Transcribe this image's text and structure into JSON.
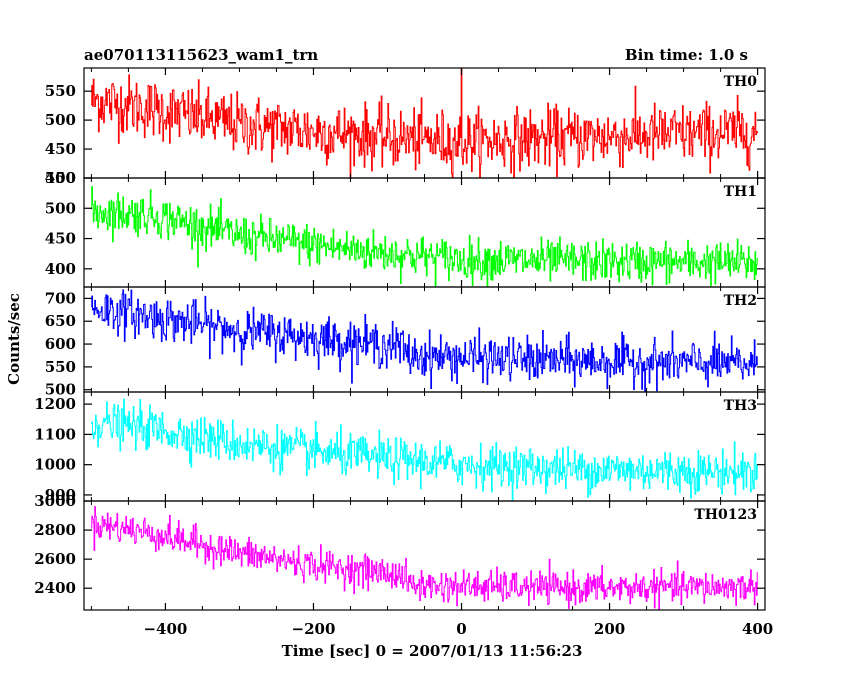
{
  "chart_data": {
    "type": "line",
    "title_left": "ae070113115623_wam1_trn",
    "title_right": "Bin time: 1.0 s",
    "xlabel": "Time [sec] 0 = 2007/01/13 11:56:23",
    "ylabel": "Counts/sec",
    "xlim": [
      -510,
      410
    ],
    "x_ticks": [
      -400,
      -200,
      0,
      200,
      400
    ],
    "x_tick_labels": [
      "−400",
      "−200",
      "0",
      "200",
      "400"
    ],
    "panels": [
      {
        "name": "TH0",
        "color": "#ff0000",
        "ylim": [
          400,
          590
        ],
        "y_ticks": [
          400,
          450,
          500,
          550
        ],
        "y_tick_labels": [
          "400",
          "450",
          "500",
          "550"
        ],
        "trend": [
          [
            -500,
            535
          ],
          [
            -420,
            520
          ],
          [
            -300,
            492
          ],
          [
            -100,
            470
          ],
          [
            0,
            462
          ],
          [
            100,
            468
          ],
          [
            250,
            474
          ],
          [
            400,
            480
          ]
        ],
        "noise": 26,
        "spikes": [
          [
            0,
            600
          ]
        ]
      },
      {
        "name": "TH1",
        "color": "#00ff00",
        "ylim": [
          370,
          550
        ],
        "y_ticks": [
          400,
          450,
          500,
          550
        ],
        "y_tick_labels": [
          "400",
          "450",
          "500",
          "550"
        ],
        "trend": [
          [
            -500,
            495
          ],
          [
            -420,
            490
          ],
          [
            -300,
            455
          ],
          [
            -150,
            432
          ],
          [
            0,
            415
          ],
          [
            150,
            412
          ],
          [
            400,
            410
          ]
        ],
        "noise": 17,
        "spikes": []
      },
      {
        "name": "TH2",
        "color": "#0000ff",
        "ylim": [
          495,
          725
        ],
        "y_ticks": [
          500,
          550,
          600,
          650,
          700
        ],
        "y_tick_labels": [
          "500",
          "550",
          "600",
          "650",
          "700"
        ],
        "trend": [
          [
            -500,
            680
          ],
          [
            -420,
            660
          ],
          [
            -300,
            630
          ],
          [
            -150,
            605
          ],
          [
            -80,
            595
          ],
          [
            -75,
            575
          ],
          [
            100,
            565
          ],
          [
            250,
            560
          ],
          [
            400,
            555
          ]
        ],
        "noise": 24,
        "spikes": []
      },
      {
        "name": "TH3",
        "color": "#00ffff",
        "ylim": [
          880,
          1240
        ],
        "y_ticks": [
          900,
          1000,
          1100,
          1200
        ],
        "y_tick_labels": [
          "900",
          "1000",
          "1100",
          "1200"
        ],
        "trend": [
          [
            -500,
            1140
          ],
          [
            -420,
            1120
          ],
          [
            -300,
            1070
          ],
          [
            -150,
            1030
          ],
          [
            0,
            1000
          ],
          [
            150,
            985
          ],
          [
            400,
            975
          ]
        ],
        "noise": 35,
        "spikes": []
      },
      {
        "name": "TH0123",
        "color": "#ff00ff",
        "ylim": [
          2250,
          3000
        ],
        "y_ticks": [
          2400,
          2600,
          2800,
          3000
        ],
        "y_tick_labels": [
          "2400",
          "2600",
          "2800",
          "3000"
        ],
        "trend": [
          [
            -500,
            2850
          ],
          [
            -420,
            2780
          ],
          [
            -300,
            2640
          ],
          [
            -200,
            2560
          ],
          [
            -80,
            2490
          ],
          [
            -70,
            2420
          ],
          [
            150,
            2400
          ],
          [
            400,
            2410
          ]
        ],
        "noise": 55,
        "spikes": []
      }
    ]
  }
}
